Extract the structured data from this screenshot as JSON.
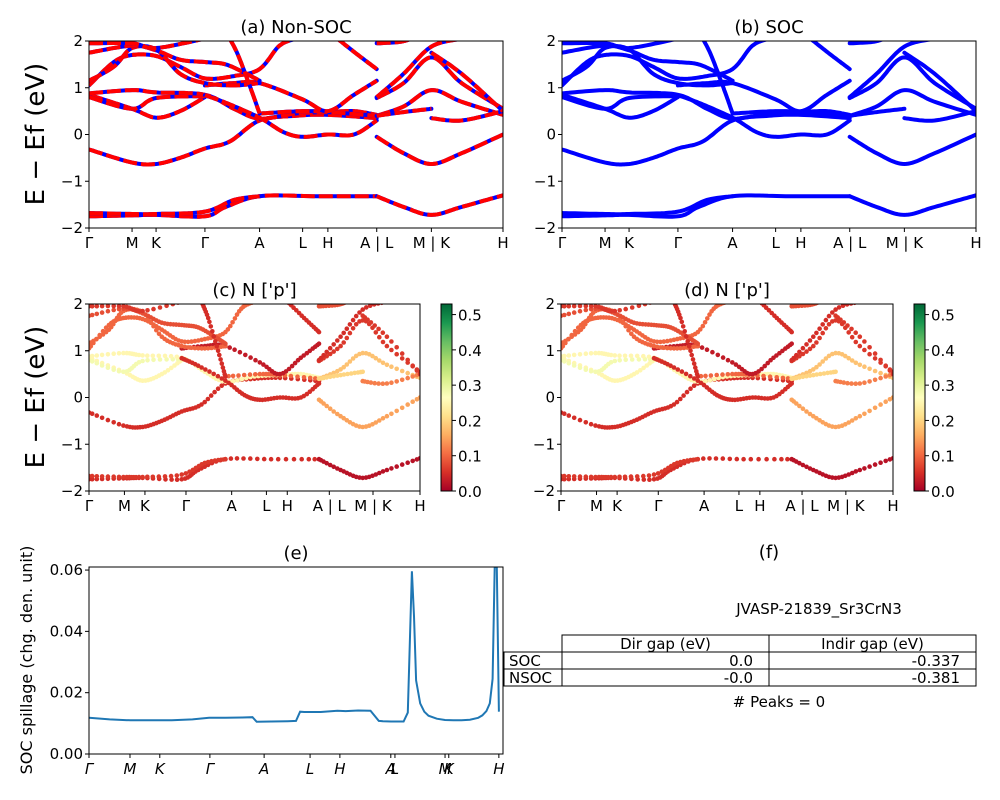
{
  "figure": {
    "material_id": "JVASP-21839_Sr3CrN3",
    "peaks_text": "# Peaks = 0"
  },
  "chart_data": [
    {
      "id": "a",
      "type": "line",
      "title": "(a) Non-SOC",
      "ylabel": "E − E_f (eV)",
      "ylim": [
        -2,
        2
      ],
      "yticks": [
        -2,
        -1,
        0,
        1,
        2
      ],
      "xtick_labels": [
        "Γ",
        "M",
        "K",
        "Γ",
        "A",
        "L",
        "H",
        "A | L",
        "M | K",
        "H"
      ],
      "xtick_positions": [
        0,
        0.104,
        0.162,
        0.28,
        0.412,
        0.516,
        0.577,
        0.695,
        0.827,
        1.0
      ],
      "line_style": "dashed red over blue",
      "colors": {
        "primary": "#ff0000",
        "secondary": "#0000ff"
      },
      "bands": "shared_bands"
    },
    {
      "id": "b",
      "type": "line",
      "title": "(b) SOC",
      "ylim": [
        -2,
        2
      ],
      "yticks": [
        -2,
        -1,
        0,
        1,
        2
      ],
      "xtick_labels": [
        "Γ",
        "M",
        "K",
        "Γ",
        "A",
        "L",
        "H",
        "A | L",
        "M | K",
        "H"
      ],
      "xtick_positions": [
        0,
        0.104,
        0.162,
        0.28,
        0.412,
        0.516,
        0.577,
        0.695,
        0.827,
        1.0
      ],
      "colors": {
        "primary": "#0000ff"
      },
      "bands": "shared_bands"
    },
    {
      "id": "c",
      "type": "scatter",
      "title": "(c)  N ['p']",
      "ylabel": "E − E_f (eV)",
      "ylim": [
        -2,
        2
      ],
      "yticks": [
        -2,
        -1,
        0,
        1,
        2
      ],
      "xtick_labels": [
        "Γ",
        "M",
        "K",
        "Γ",
        "A",
        "L",
        "H",
        "A | L",
        "M | K",
        "H"
      ],
      "xtick_positions": [
        0,
        0.107,
        0.169,
        0.293,
        0.431,
        0.536,
        0.599,
        0.726,
        0.858,
        1.0
      ],
      "colorbar": {
        "cmap": "RdYlGn",
        "range": [
          0.0,
          0.53
        ],
        "ticks": [
          "0.0",
          "0.1",
          "0.2",
          "0.3",
          "0.4",
          "0.5"
        ]
      },
      "bands": "shared_bands"
    },
    {
      "id": "d",
      "type": "scatter",
      "title": "(d) N ['p']",
      "ylim": [
        -2,
        2
      ],
      "yticks": [
        -2,
        -1,
        0,
        1,
        2
      ],
      "xtick_labels": [
        "Γ",
        "M",
        "K",
        "Γ",
        "A",
        "L",
        "H",
        "A | L",
        "M | K",
        "H"
      ],
      "xtick_positions": [
        0,
        0.107,
        0.169,
        0.293,
        0.431,
        0.536,
        0.599,
        0.726,
        0.858,
        1.0
      ],
      "colorbar": {
        "cmap": "RdYlGn",
        "range": [
          0.0,
          0.53
        ],
        "ticks": [
          "0.0",
          "0.1",
          "0.2",
          "0.3",
          "0.4",
          "0.5"
        ]
      },
      "bands": "shared_bands"
    },
    {
      "id": "e",
      "type": "line",
      "title": "(e)",
      "ylabel": "SOC spillage (chg. den. unit)",
      "ylim": [
        0,
        0.061
      ],
      "yticks": [
        "0.00",
        "0.02",
        "0.04",
        "0.06"
      ],
      "ytick_values": [
        0,
        0.02,
        0.04,
        0.06
      ],
      "xtick_labels": [
        "Γ",
        "M",
        "K",
        "Γ",
        "A",
        "L",
        "H",
        "A",
        "L",
        "M",
        "K",
        "H"
      ],
      "xtick_positions": [
        0,
        0.099,
        0.171,
        0.292,
        0.423,
        0.534,
        0.606,
        0.729,
        0.739,
        0.86,
        0.869,
        0.99
      ],
      "color": "#1f77b4",
      "x": [
        0,
        0.05,
        0.1,
        0.15,
        0.2,
        0.25,
        0.29,
        0.33,
        0.37,
        0.395,
        0.405,
        0.44,
        0.48,
        0.5,
        0.51,
        0.52,
        0.56,
        0.6,
        0.62,
        0.65,
        0.68,
        0.7,
        0.71,
        0.73,
        0.76,
        0.77,
        0.78,
        0.785,
        0.79,
        0.8,
        0.81,
        0.82,
        0.84,
        0.86,
        0.88,
        0.9,
        0.92,
        0.94,
        0.95,
        0.96,
        0.968,
        0.975,
        0.98,
        0.985,
        0.99
      ],
      "y": [
        0.0118,
        0.0113,
        0.011,
        0.011,
        0.011,
        0.0113,
        0.0118,
        0.0118,
        0.0119,
        0.012,
        0.0105,
        0.0106,
        0.0107,
        0.0108,
        0.0138,
        0.0137,
        0.0137,
        0.0141,
        0.014,
        0.0142,
        0.0141,
        0.0108,
        0.0107,
        0.0106,
        0.0106,
        0.0135,
        0.0596,
        0.045,
        0.024,
        0.0165,
        0.0138,
        0.0125,
        0.0115,
        0.0111,
        0.011,
        0.011,
        0.0112,
        0.0118,
        0.0126,
        0.014,
        0.0165,
        0.0245,
        0.061,
        0.061,
        0.0138
      ]
    },
    {
      "id": "f",
      "type": "table",
      "title": "(f)",
      "columns": [
        "Dir gap (eV)",
        "Indir gap (eV)"
      ],
      "rows": [
        {
          "label": "SOC",
          "values": [
            "0.0",
            "-0.337"
          ]
        },
        {
          "label": "NSOC",
          "values": [
            "-0.0",
            "-0.381"
          ]
        }
      ]
    }
  ],
  "shared_bands": [
    {
      "w": 0.05,
      "pts": [
        [
          0,
          -1.75
        ],
        [
          0.104,
          -1.73
        ],
        [
          0.162,
          -1.72
        ],
        [
          0.28,
          -1.75
        ],
        [
          0.33,
          -1.55
        ],
        [
          0.412,
          -1.32
        ],
        [
          0.55,
          -1.32
        ],
        [
          0.695,
          -1.32
        ]
      ]
    },
    {
      "w": 0.06,
      "pts": [
        [
          0,
          -1.68
        ],
        [
          0.104,
          -1.7
        ],
        [
          0.162,
          -1.7
        ],
        [
          0.28,
          -1.65
        ],
        [
          0.35,
          -1.4
        ],
        [
          0.412,
          -1.32
        ]
      ]
    },
    {
      "w": 0.02,
      "pts": [
        [
          0.695,
          -1.32
        ],
        [
          0.76,
          -1.55
        ],
        [
          0.827,
          -1.72
        ],
        [
          0.9,
          -1.55
        ],
        [
          1.0,
          -1.3
        ]
      ]
    },
    {
      "w": 0.05,
      "pts": [
        [
          0,
          -0.32
        ],
        [
          0.104,
          -0.6
        ],
        [
          0.162,
          -0.63
        ],
        [
          0.22,
          -0.5
        ],
        [
          0.28,
          -0.3
        ],
        [
          0.34,
          -0.15
        ],
        [
          0.412,
          0.3
        ],
        [
          0.5,
          0.4
        ],
        [
          0.577,
          0.42
        ],
        [
          0.695,
          0.35
        ]
      ]
    },
    {
      "w": 0.15,
      "pts": [
        [
          0.695,
          -0.05
        ],
        [
          0.76,
          -0.4
        ],
        [
          0.827,
          -0.63
        ],
        [
          0.9,
          -0.4
        ],
        [
          1.0,
          0.0
        ]
      ]
    },
    {
      "w": 0.25,
      "pts": [
        [
          0,
          0.85
        ],
        [
          0.104,
          0.55
        ],
        [
          0.162,
          0.36
        ],
        [
          0.22,
          0.5
        ],
        [
          0.28,
          0.8
        ]
      ]
    },
    {
      "w": 0.28,
      "pts": [
        [
          0,
          0.8
        ],
        [
          0.104,
          0.55
        ],
        [
          0.162,
          0.78
        ],
        [
          0.28,
          0.82
        ]
      ]
    },
    {
      "w": 0.25,
      "pts": [
        [
          0,
          0.88
        ],
        [
          0.104,
          0.95
        ],
        [
          0.162,
          0.9
        ],
        [
          0.28,
          0.85
        ],
        [
          0.35,
          0.55
        ],
        [
          0.412,
          0.34
        ],
        [
          0.5,
          0.45
        ],
        [
          0.577,
          0.48
        ],
        [
          0.64,
          0.5
        ],
        [
          0.695,
          0.42
        ]
      ]
    },
    {
      "w": 0.05,
      "pts": [
        [
          0.28,
          0.84
        ],
        [
          0.33,
          0.68
        ],
        [
          0.412,
          0.36
        ],
        [
          0.47,
          0.05
        ],
        [
          0.516,
          -0.05
        ],
        [
          0.577,
          0.0
        ],
        [
          0.64,
          0.0
        ],
        [
          0.695,
          0.3
        ]
      ]
    },
    {
      "w": 0.1,
      "pts": [
        [
          0.412,
          0.45
        ],
        [
          0.516,
          0.5
        ],
        [
          0.577,
          0.48
        ],
        [
          0.695,
          0.4
        ]
      ]
    },
    {
      "w": 0.18,
      "pts": [
        [
          0.695,
          0.4
        ],
        [
          0.76,
          0.6
        ],
        [
          0.827,
          0.95
        ],
        [
          0.9,
          0.7
        ],
        [
          1.0,
          0.42
        ]
      ]
    },
    {
      "w": 0.2,
      "pts": [
        [
          0.695,
          0.4
        ],
        [
          0.76,
          0.48
        ],
        [
          0.827,
          0.55
        ]
      ]
    },
    {
      "w": 0.12,
      "pts": [
        [
          0.827,
          0.35
        ],
        [
          0.9,
          0.3
        ],
        [
          1.0,
          0.5
        ]
      ]
    },
    {
      "w": 0.06,
      "pts": [
        [
          0.695,
          0.78
        ],
        [
          0.76,
          1.1
        ],
        [
          0.827,
          1.65
        ],
        [
          0.9,
          1.1
        ],
        [
          1.0,
          0.55
        ]
      ]
    },
    {
      "w": 0.05,
      "pts": [
        [
          0.695,
          0.8
        ],
        [
          0.76,
          1.3
        ],
        [
          0.827,
          1.88
        ],
        [
          0.9,
          2.05
        ]
      ]
    },
    {
      "w": 0.03,
      "pts": [
        [
          0.28,
          1.05
        ],
        [
          0.35,
          1.1
        ],
        [
          0.412,
          1.1
        ],
        [
          0.516,
          0.75
        ],
        [
          0.577,
          0.5
        ],
        [
          0.64,
          0.85
        ],
        [
          0.695,
          1.15
        ]
      ]
    },
    {
      "w": 0.1,
      "pts": [
        [
          0,
          1.05
        ],
        [
          0.06,
          1.55
        ],
        [
          0.104,
          1.7
        ],
        [
          0.162,
          1.68
        ],
        [
          0.22,
          1.45
        ],
        [
          0.28,
          1.2
        ],
        [
          0.35,
          1.25
        ],
        [
          0.412,
          1.4
        ],
        [
          0.46,
          1.9
        ],
        [
          0.5,
          2.05
        ]
      ]
    },
    {
      "w": 0.1,
      "pts": [
        [
          0,
          1.15
        ],
        [
          0.06,
          1.45
        ],
        [
          0.104,
          1.85
        ],
        [
          0.162,
          1.82
        ],
        [
          0.22,
          1.3
        ],
        [
          0.28,
          1.1
        ],
        [
          0.35,
          1.05
        ],
        [
          0.412,
          1.1
        ]
      ]
    },
    {
      "w": 0.08,
      "pts": [
        [
          0,
          1.75
        ],
        [
          0.104,
          1.9
        ],
        [
          0.162,
          1.8
        ],
        [
          0.22,
          1.6
        ],
        [
          0.28,
          1.55
        ],
        [
          0.33,
          1.5
        ],
        [
          0.38,
          1.3
        ],
        [
          0.412,
          1.15
        ]
      ]
    },
    {
      "w": 0.06,
      "pts": [
        [
          0,
          1.95
        ],
        [
          0.104,
          1.95
        ],
        [
          0.162,
          1.85
        ],
        [
          0.28,
          2.05
        ]
      ]
    },
    {
      "w": 0.05,
      "pts": [
        [
          0.34,
          2.05
        ],
        [
          0.36,
          1.7
        ],
        [
          0.39,
          1.0
        ],
        [
          0.412,
          0.45
        ]
      ]
    },
    {
      "w": 0.05,
      "pts": [
        [
          0.6,
          2.05
        ],
        [
          0.65,
          1.7
        ],
        [
          0.695,
          1.4
        ]
      ]
    },
    {
      "w": 0.08,
      "pts": [
        [
          0.695,
          1.95
        ],
        [
          0.75,
          1.98
        ],
        [
          0.78,
          2.05
        ]
      ]
    },
    {
      "w": 0.06,
      "pts": [
        [
          0.827,
          1.75
        ],
        [
          0.9,
          1.3
        ],
        [
          1.0,
          0.5
        ]
      ]
    }
  ]
}
